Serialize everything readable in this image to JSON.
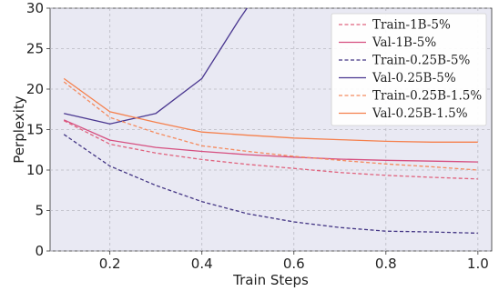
{
  "chart_data": {
    "type": "line",
    "xlabel": "Train Steps",
    "ylabel": "Perplexity",
    "xlim": [
      0.07,
      1.03
    ],
    "ylim": [
      0,
      30
    ],
    "xticks": [
      0.2,
      0.4,
      0.6,
      0.8,
      1.0
    ],
    "xtick_labels": [
      "0.2",
      "0.4",
      "0.6",
      "0.8",
      "1.0"
    ],
    "yticks": [
      0,
      5,
      10,
      15,
      20,
      25,
      30
    ],
    "ytick_labels": [
      "0",
      "5",
      "10",
      "15",
      "20",
      "25",
      "30"
    ],
    "grid": true,
    "legend_position": "top-right",
    "background_color": "#e9e9f3",
    "series": [
      {
        "name": "Train-1B-5%",
        "color": "#e0637e",
        "style": "dashed",
        "x": [
          0.1,
          0.2,
          0.3,
          0.4,
          0.5,
          0.6,
          0.7,
          0.8,
          0.9,
          1.0
        ],
        "y": [
          16.1,
          13.2,
          12.1,
          11.3,
          10.7,
          10.2,
          9.7,
          9.35,
          9.1,
          8.9
        ]
      },
      {
        "name": "Val-1B-5%",
        "color": "#d64f80",
        "style": "solid",
        "x": [
          0.1,
          0.2,
          0.3,
          0.4,
          0.5,
          0.6,
          0.7,
          0.8,
          0.9,
          1.0
        ],
        "y": [
          16.2,
          13.7,
          12.8,
          12.3,
          11.9,
          11.6,
          11.35,
          11.2,
          11.1,
          11.0
        ]
      },
      {
        "name": "Train-0.25B-5%",
        "color": "#433584",
        "style": "dashed",
        "x": [
          0.1,
          0.2,
          0.3,
          0.4,
          0.5,
          0.6,
          0.7,
          0.8,
          0.9,
          1.0
        ],
        "y": [
          14.4,
          10.5,
          8.1,
          6.1,
          4.6,
          3.6,
          2.9,
          2.45,
          2.35,
          2.2
        ]
      },
      {
        "name": "Val-0.25B-5%",
        "color": "#4a3790",
        "style": "solid",
        "x": [
          0.1,
          0.2,
          0.3,
          0.4,
          0.48,
          0.51
        ],
        "y": [
          17.0,
          15.7,
          17.0,
          21.3,
          28.5,
          31.0
        ]
      },
      {
        "name": "Train-0.25B-1.5%",
        "color": "#f58a5e",
        "style": "dashed",
        "x": [
          0.1,
          0.2,
          0.3,
          0.4,
          0.5,
          0.6,
          0.7,
          0.8,
          0.9,
          1.0
        ],
        "y": [
          20.9,
          16.5,
          14.6,
          13.0,
          12.3,
          11.7,
          11.2,
          10.75,
          10.4,
          10.0
        ]
      },
      {
        "name": "Val-0.25B-1.5%",
        "color": "#f5804d",
        "style": "solid",
        "x": [
          0.1,
          0.2,
          0.3,
          0.4,
          0.5,
          0.6,
          0.7,
          0.8,
          0.9,
          1.0
        ],
        "y": [
          21.3,
          17.2,
          15.9,
          14.7,
          14.3,
          13.95,
          13.75,
          13.55,
          13.45,
          13.45
        ]
      }
    ]
  }
}
